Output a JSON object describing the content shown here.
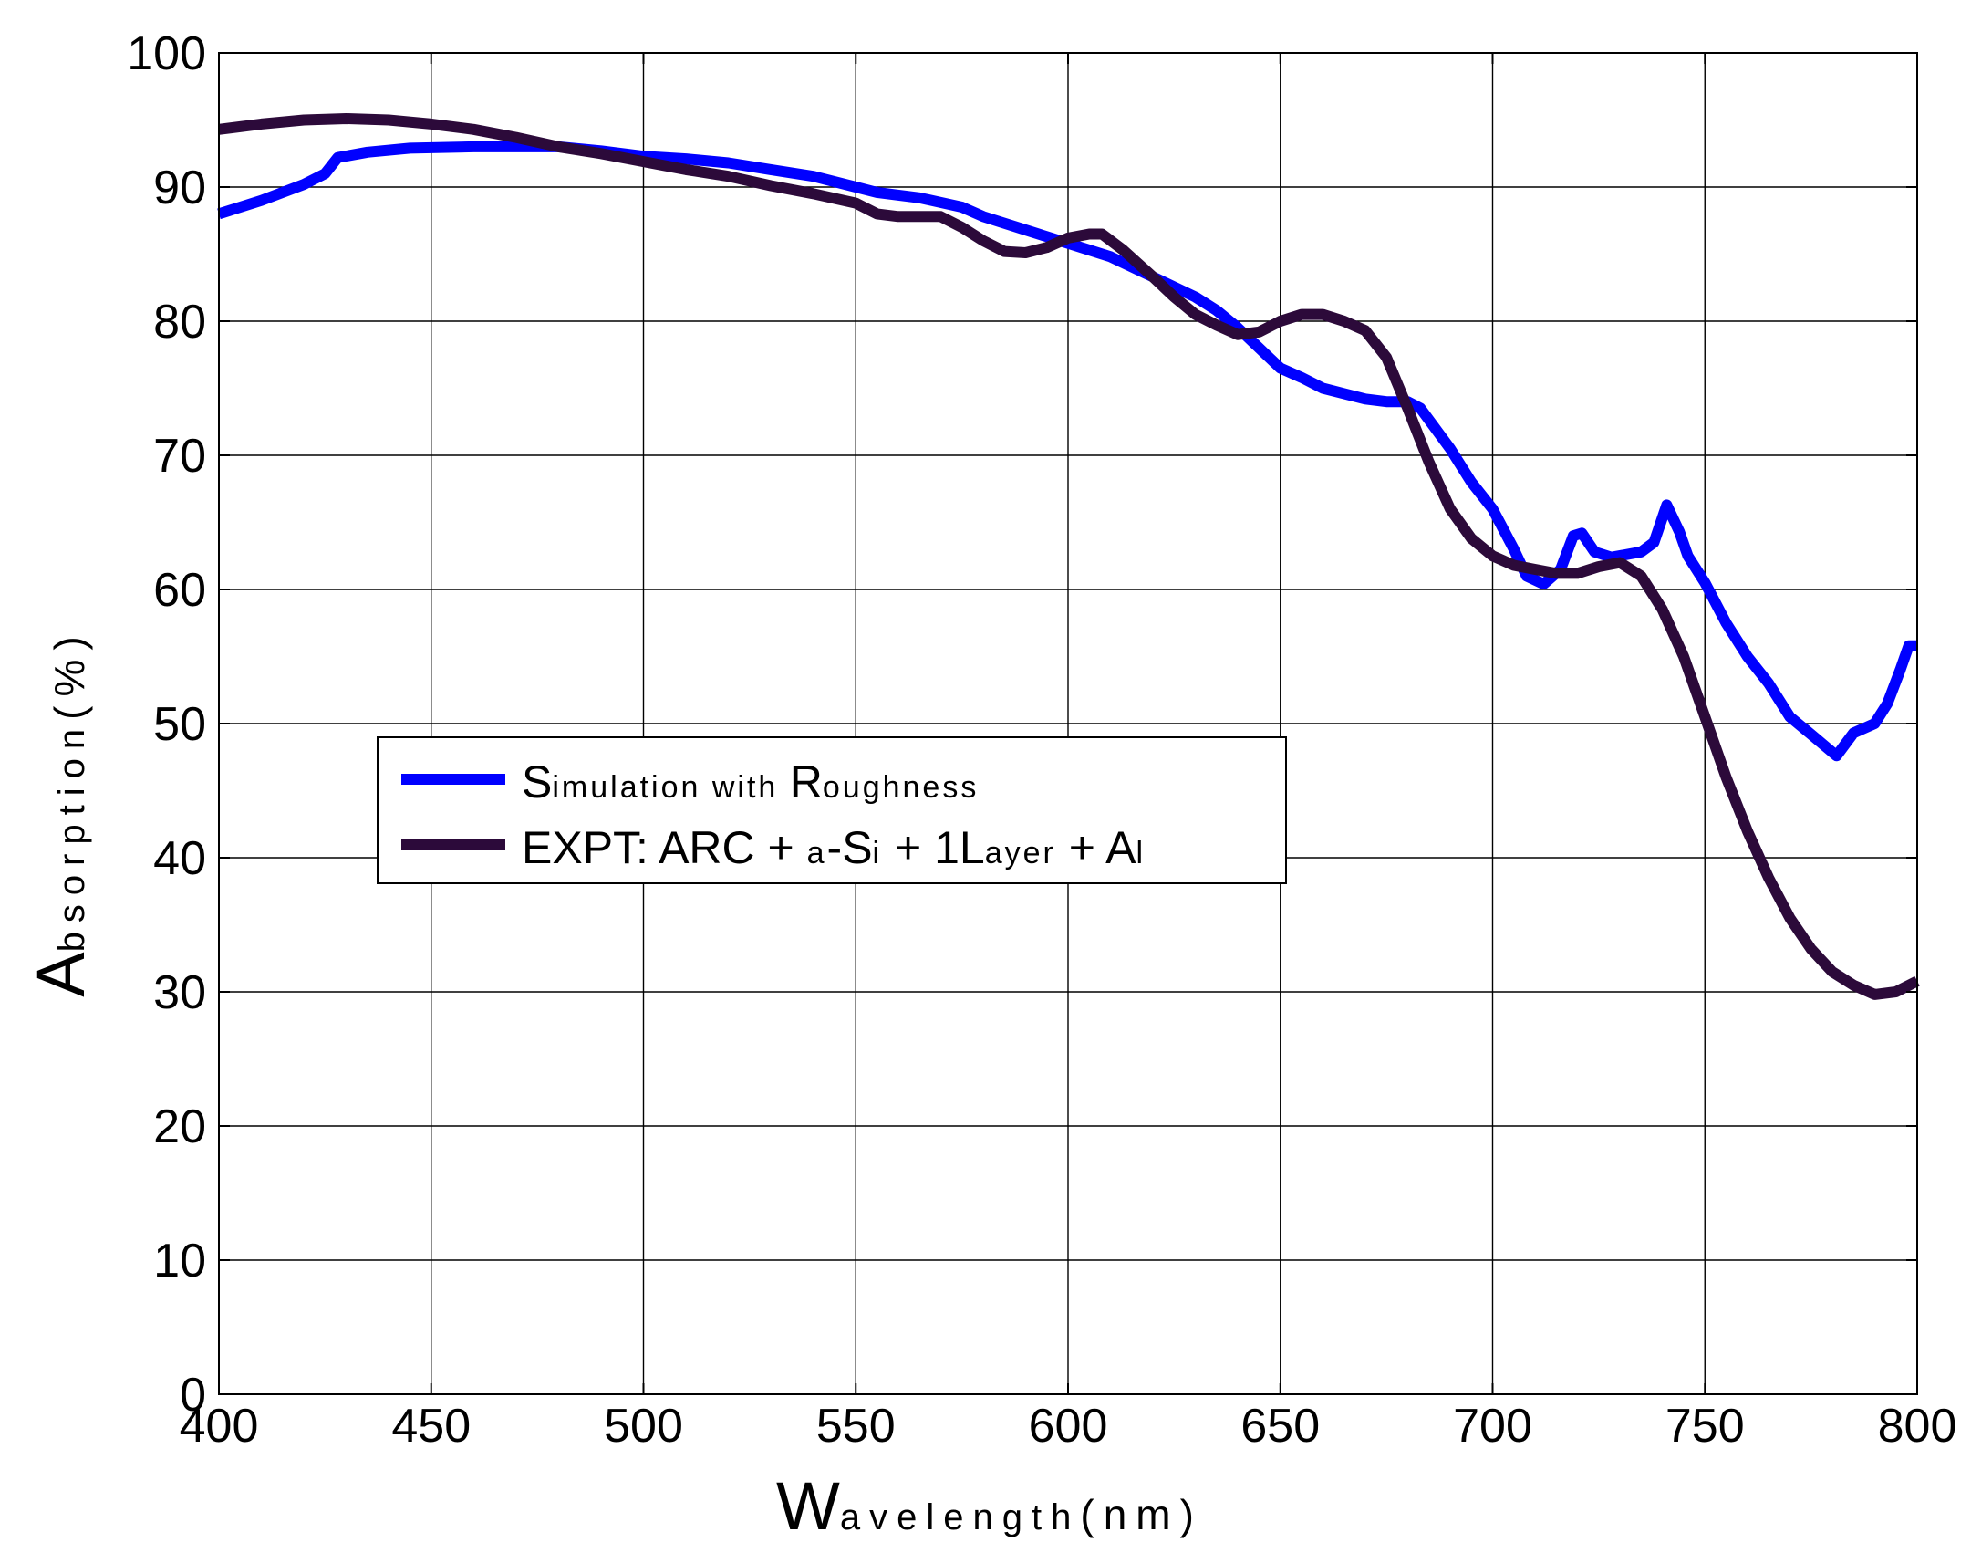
{
  "chart_data": {
    "type": "line",
    "xlabel": {
      "big": "W",
      "small": "avelength",
      "paren": "(nm)"
    },
    "ylabel": {
      "big": "A",
      "small": "bsorption",
      "paren": "(%)"
    },
    "xlim": [
      400,
      800
    ],
    "ylim": [
      0,
      100
    ],
    "xticks": [
      400,
      450,
      500,
      550,
      600,
      650,
      700,
      750,
      800
    ],
    "yticks": [
      0,
      10,
      20,
      30,
      40,
      50,
      60,
      70,
      80,
      90,
      100
    ],
    "grid": true,
    "legend_position": "center-left",
    "series": [
      {
        "name": "Simulation with Roughness",
        "legend_parts": [
          {
            "t": "S",
            "s": "big"
          },
          {
            "t": "imulation with ",
            "s": "small"
          },
          {
            "t": "R",
            "s": "big"
          },
          {
            "t": "oughness",
            "s": "small"
          }
        ],
        "color": "#0000ff",
        "points": [
          [
            400,
            88
          ],
          [
            410,
            89
          ],
          [
            420,
            90.2
          ],
          [
            425,
            91
          ],
          [
            428,
            92.2
          ],
          [
            435,
            92.6
          ],
          [
            445,
            92.9
          ],
          [
            460,
            93
          ],
          [
            480,
            93
          ],
          [
            490,
            92.7
          ],
          [
            500,
            92.3
          ],
          [
            510,
            92.1
          ],
          [
            520,
            91.8
          ],
          [
            530,
            91.3
          ],
          [
            540,
            90.8
          ],
          [
            550,
            90
          ],
          [
            555,
            89.6
          ],
          [
            565,
            89.2
          ],
          [
            575,
            88.5
          ],
          [
            580,
            87.8
          ],
          [
            590,
            86.8
          ],
          [
            600,
            85.8
          ],
          [
            610,
            84.8
          ],
          [
            620,
            83.3
          ],
          [
            630,
            81.8
          ],
          [
            635,
            80.8
          ],
          [
            640,
            79.5
          ],
          [
            645,
            78
          ],
          [
            650,
            76.5
          ],
          [
            655,
            75.8
          ],
          [
            660,
            75
          ],
          [
            665,
            74.6
          ],
          [
            670,
            74.2
          ],
          [
            675,
            74
          ],
          [
            680,
            74
          ],
          [
            683,
            73.5
          ],
          [
            690,
            70.5
          ],
          [
            695,
            68
          ],
          [
            700,
            66
          ],
          [
            705,
            63
          ],
          [
            708,
            61
          ],
          [
            712,
            60.4
          ],
          [
            716,
            61.5
          ],
          [
            719,
            64
          ],
          [
            721,
            64.2
          ],
          [
            724,
            62.8
          ],
          [
            728,
            62.4
          ],
          [
            735,
            62.8
          ],
          [
            738,
            63.5
          ],
          [
            741,
            66.3
          ],
          [
            744,
            64.3
          ],
          [
            746,
            62.5
          ],
          [
            750,
            60.5
          ],
          [
            755,
            57.5
          ],
          [
            760,
            55
          ],
          [
            765,
            53
          ],
          [
            770,
            50.5
          ],
          [
            775,
            49.2
          ],
          [
            781,
            47.6
          ],
          [
            785,
            49.3
          ],
          [
            790,
            50
          ],
          [
            793,
            51.5
          ],
          [
            796,
            54
          ],
          [
            798,
            55.8
          ],
          [
            800,
            55.8
          ]
        ]
      },
      {
        "name": "EXPT: ARC + a-Si + 1Layer + Al",
        "legend_parts": [
          {
            "t": "EXPT: ARC + ",
            "s": "big"
          },
          {
            "t": "a",
            "s": "small"
          },
          {
            "t": "-S",
            "s": "big"
          },
          {
            "t": "i",
            "s": "small"
          },
          {
            "t": " + 1L",
            "s": "big"
          },
          {
            "t": "ayer",
            "s": "small"
          },
          {
            "t": " + A",
            "s": "big"
          },
          {
            "t": "l",
            "s": "small"
          }
        ],
        "color": "#2c0a3a",
        "points": [
          [
            400,
            94.3
          ],
          [
            410,
            94.7
          ],
          [
            420,
            95
          ],
          [
            430,
            95.1
          ],
          [
            440,
            95
          ],
          [
            450,
            94.7
          ],
          [
            460,
            94.3
          ],
          [
            470,
            93.7
          ],
          [
            480,
            93
          ],
          [
            490,
            92.5
          ],
          [
            500,
            91.9
          ],
          [
            510,
            91.3
          ],
          [
            520,
            90.8
          ],
          [
            530,
            90.1
          ],
          [
            540,
            89.5
          ],
          [
            550,
            88.8
          ],
          [
            555,
            88
          ],
          [
            560,
            87.8
          ],
          [
            570,
            87.8
          ],
          [
            575,
            87
          ],
          [
            580,
            86
          ],
          [
            585,
            85.2
          ],
          [
            590,
            85.1
          ],
          [
            595,
            85.5
          ],
          [
            600,
            86.2
          ],
          [
            605,
            86.5
          ],
          [
            608,
            86.5
          ],
          [
            613,
            85.3
          ],
          [
            620,
            83.3
          ],
          [
            625,
            81.8
          ],
          [
            630,
            80.5
          ],
          [
            635,
            79.7
          ],
          [
            640,
            79
          ],
          [
            645,
            79.2
          ],
          [
            650,
            80
          ],
          [
            655,
            80.5
          ],
          [
            660,
            80.5
          ],
          [
            665,
            80
          ],
          [
            670,
            79.3
          ],
          [
            675,
            77.3
          ],
          [
            680,
            73.5
          ],
          [
            685,
            69.5
          ],
          [
            690,
            66
          ],
          [
            695,
            63.8
          ],
          [
            700,
            62.5
          ],
          [
            705,
            61.8
          ],
          [
            710,
            61.5
          ],
          [
            715,
            61.2
          ],
          [
            720,
            61.2
          ],
          [
            725,
            61.7
          ],
          [
            730,
            62
          ],
          [
            735,
            61
          ],
          [
            740,
            58.5
          ],
          [
            745,
            55
          ],
          [
            750,
            50.5
          ],
          [
            755,
            46
          ],
          [
            760,
            42
          ],
          [
            765,
            38.5
          ],
          [
            770,
            35.5
          ],
          [
            775,
            33.2
          ],
          [
            780,
            31.5
          ],
          [
            785,
            30.5
          ],
          [
            790,
            29.8
          ],
          [
            795,
            30
          ],
          [
            800,
            30.8
          ]
        ]
      }
    ]
  }
}
